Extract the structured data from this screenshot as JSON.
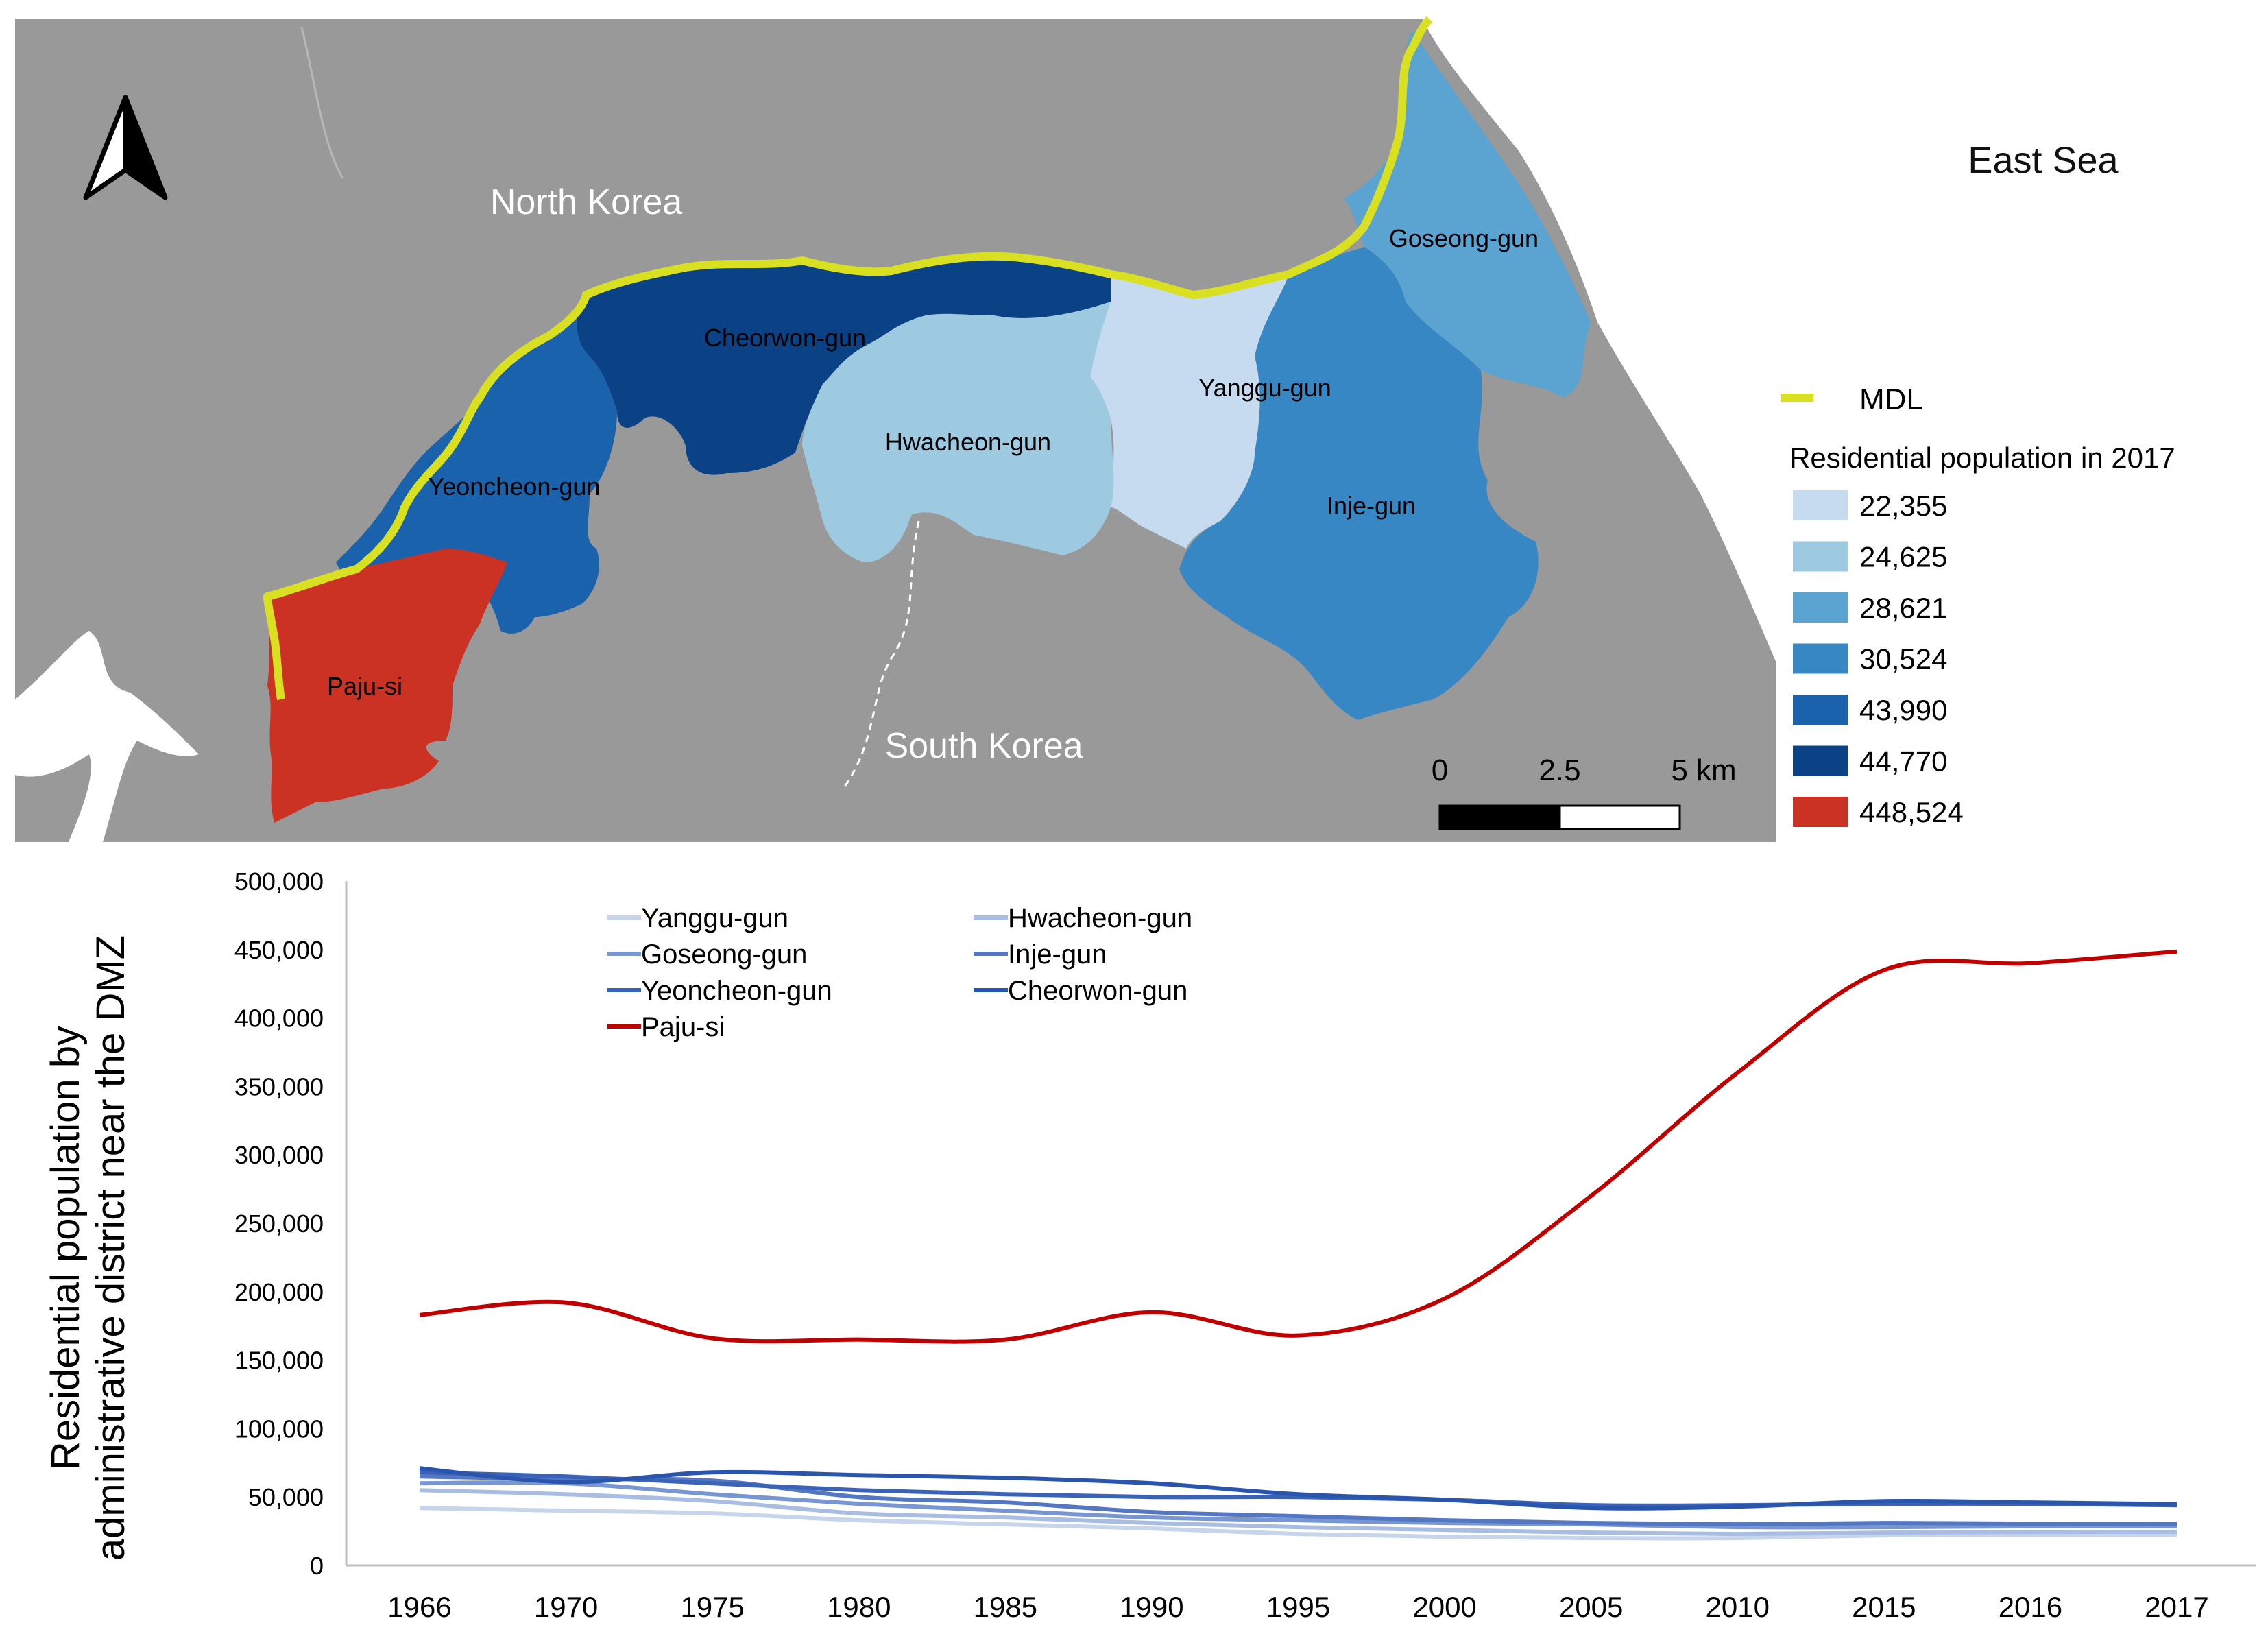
{
  "map": {
    "labels": {
      "north_korea": "North Korea",
      "south_korea": "South Korea",
      "east_sea": "East Sea"
    },
    "districts": [
      {
        "name": "Cheorwon-gun",
        "population": "44,770",
        "color": "#0b4185"
      },
      {
        "name": "Hwacheon-gun",
        "population": "24,625",
        "color": "#9ecae1"
      },
      {
        "name": "Yanggu-gun",
        "population": "22,355",
        "color": "#c6dbef"
      },
      {
        "name": "Goseong-gun",
        "population": "28,621",
        "color": "#5ba3d0"
      },
      {
        "name": "Yeoncheon-gun",
        "population": "43,990",
        "color": "#1a62ab"
      },
      {
        "name": "Inje-gun",
        "population": "30,524",
        "color": "#3787c4"
      },
      {
        "name": "Paju-si",
        "population": "448,524",
        "color": "#cb3223"
      }
    ],
    "legend": {
      "mdl_label": "MDL",
      "mdl_color": "#d9e021",
      "title": "Residential population in 2017",
      "classes": [
        {
          "label": "22,355",
          "color": "#c6dbef"
        },
        {
          "label": "24,625",
          "color": "#9ecae1"
        },
        {
          "label": "28,621",
          "color": "#5ba3d0"
        },
        {
          "label": "30,524",
          "color": "#3787c4"
        },
        {
          "label": "43,990",
          "color": "#1a62ab"
        },
        {
          "label": "44,770",
          "color": "#0b4185"
        },
        {
          "label": "448,524",
          "color": "#cb3223"
        }
      ]
    },
    "scale_bar": {
      "ticks": [
        "0",
        "2.5",
        "5 km"
      ]
    },
    "land_color": "#999999",
    "sea_color": "#ffffff"
  },
  "chart_data": {
    "type": "line",
    "categories": [
      "1966",
      "1970",
      "1975",
      "1980",
      "1985",
      "1990",
      "1995",
      "2000",
      "2005",
      "2010",
      "2015",
      "2016",
      "2017"
    ],
    "ylabel": "Residential population by administrative district near the DMZ",
    "ylim": [
      0,
      500000
    ],
    "yticks": [
      "0",
      "50,000",
      "100,000",
      "150,000",
      "200,000",
      "250,000",
      "300,000",
      "350,000",
      "400,000",
      "450,000",
      "500,000"
    ],
    "legend_position": "top-left",
    "series": [
      {
        "name": "Yanggu-gun",
        "color": "#c6d4ec",
        "values": [
          42000,
          40000,
          38000,
          33000,
          30000,
          27000,
          23000,
          21000,
          20000,
          20000,
          22000,
          22300,
          22355
        ]
      },
      {
        "name": "Hwacheon-gun",
        "color": "#a9bde2",
        "values": [
          55000,
          52000,
          47000,
          38000,
          35000,
          31000,
          28000,
          26000,
          24000,
          23000,
          24000,
          24500,
          24625
        ]
      },
      {
        "name": "Goseong-gun",
        "color": "#7896d2",
        "values": [
          60000,
          60000,
          52000,
          45000,
          40000,
          35000,
          33000,
          31000,
          30000,
          28000,
          28000,
          28600,
          28621
        ]
      },
      {
        "name": "Inje-gun",
        "color": "#5477c3",
        "values": [
          65000,
          63000,
          62000,
          50000,
          46000,
          39000,
          36000,
          33000,
          31000,
          30000,
          31000,
          30500,
          30524
        ]
      },
      {
        "name": "Yeoncheon-gun",
        "color": "#3a63b8",
        "values": [
          68000,
          65000,
          60000,
          55000,
          52000,
          50000,
          50000,
          48000,
          44000,
          44000,
          45000,
          45000,
          43990
        ]
      },
      {
        "name": "Cheorwon-gun",
        "color": "#2a55ad",
        "values": [
          71000,
          61000,
          68000,
          66000,
          64000,
          60000,
          52000,
          48000,
          42000,
          43000,
          47000,
          46000,
          44770
        ]
      },
      {
        "name": "Paju-si",
        "color": "#c00000",
        "values": [
          183000,
          192000,
          166000,
          165000,
          165000,
          185000,
          168000,
          195000,
          270000,
          360000,
          435000,
          440000,
          448524
        ]
      }
    ]
  }
}
